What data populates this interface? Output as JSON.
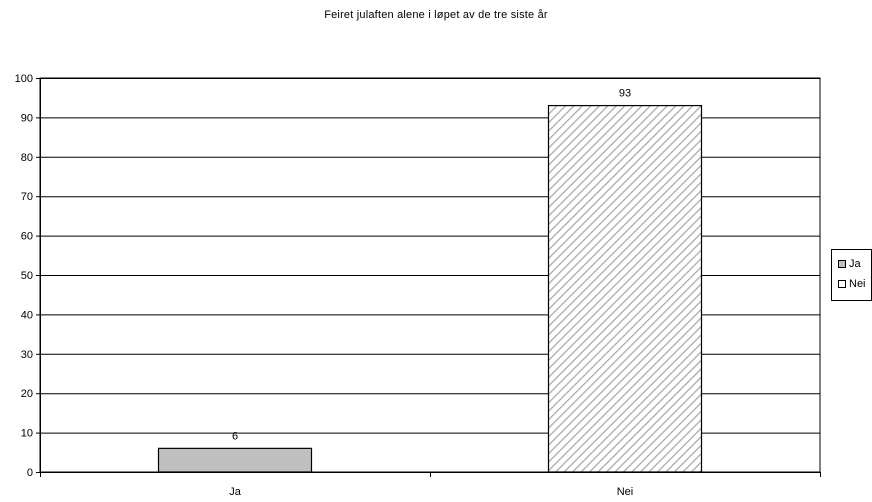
{
  "chart_data": {
    "type": "bar",
    "title": "Feiret julaften alene i løpet av de tre siste år",
    "categories": [
      "Ja",
      "Nei"
    ],
    "values": [
      6,
      93
    ],
    "data_labels": [
      "6",
      "93"
    ],
    "ylim": [
      0,
      100
    ],
    "yticks": [
      0,
      10,
      20,
      30,
      40,
      50,
      60,
      70,
      80,
      90,
      100
    ],
    "grid": true,
    "legend": {
      "placement": "right",
      "entries": [
        {
          "name": "Ja",
          "color": "#c0c0c0",
          "pattern": "solid"
        },
        {
          "name": "Nei",
          "color": "#ffffff",
          "pattern": "diagonal-hatch"
        }
      ]
    },
    "colors": {
      "ja": "#c0c0c0",
      "nei_hatch": "#a8a8a8",
      "axis": "#000000"
    }
  }
}
